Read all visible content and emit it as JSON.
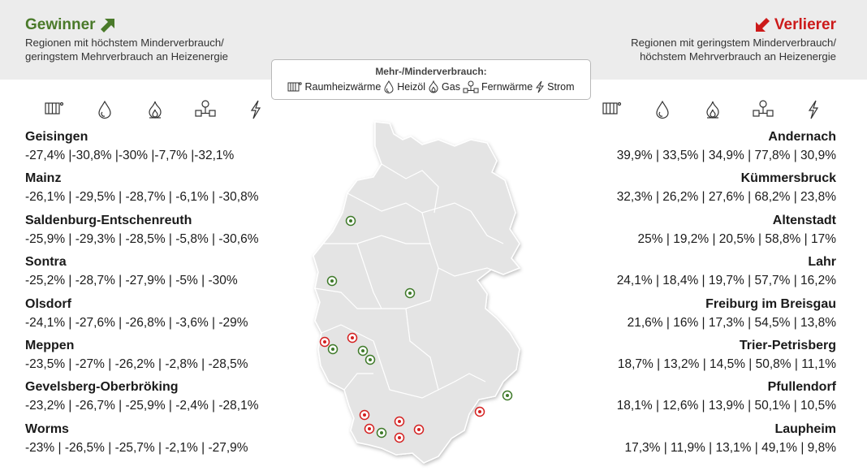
{
  "winners": {
    "title": "Gewinner",
    "subtitle_line1": "Regionen mit höchstem Minderverbrauch/",
    "subtitle_line2": "geringstem Mehrverbrauch an Heizenergie",
    "arrow_color": "#4a7a2a",
    "arrow_icon": "arrow-up-right-icon",
    "entries": [
      {
        "name": "Geisingen",
        "values": "-27,4% |-30,8% |-30% |-7,7% |-32,1%"
      },
      {
        "name": "Mainz",
        "values": "-26,1% | -29,5% | -28,7% | -6,1% | -30,8%"
      },
      {
        "name": "Saldenburg-Entschenreuth",
        "values": "-25,9% | -29,3% | -28,5% | -5,8% | -30,6%"
      },
      {
        "name": "Sontra",
        "values": "-25,2% | -28,7% | -27,9% | -5% | -30%"
      },
      {
        "name": "Olsdorf",
        "values": "-24,1% | -27,6% | -26,8% | -3,6% | -29%"
      },
      {
        "name": "Meppen",
        "values": "-23,5% | -27% | -26,2% | -2,8% | -28,5%"
      },
      {
        "name": "Gevelsberg-Oberbröking",
        "values": "-23,2% | -26,7% | -25,9% | -2,4% | -28,1%"
      },
      {
        "name": "Worms",
        "values": "-23% | -26,5% | -25,7% | -2,1% | -27,9%"
      }
    ]
  },
  "losers": {
    "title": "Verlierer",
    "subtitle_line1": "Regionen mit geringstem Minderverbrauch/",
    "subtitle_line2": "höchstem Mehrverbrauch an Heizenergie",
    "arrow_color": "#cc1a1a",
    "arrow_icon": "arrow-down-left-icon",
    "entries": [
      {
        "name": "Andernach",
        "values": "39,9% | 33,5% | 34,9% | 77,8% | 30,9%"
      },
      {
        "name": "Kümmersbruck",
        "values": "32,3% | 26,2% | 27,6% | 68,2% | 23,8%"
      },
      {
        "name": "Altenstadt",
        "values": "25% | 19,2% | 20,5% | 58,8% | 17%"
      },
      {
        "name": "Lahr",
        "values": "24,1% | 18,4% | 19,7% | 57,7% | 16,2%"
      },
      {
        "name": "Freiburg im Breisgau",
        "values": "21,6% | 16% | 17,3% | 54,5% | 13,8%"
      },
      {
        "name": "Trier-Petrisberg",
        "values": "18,7% | 13,2% | 14,5% | 50,8% | 11,1%"
      },
      {
        "name": "Pfullendorf",
        "values": "18,1% | 12,6% | 13,9% | 50,1% | 10,5%"
      },
      {
        "name": "Laupheim",
        "values": "17,3% | 11,9% | 13,1% | 49,1% | 9,8%"
      }
    ]
  },
  "legend": {
    "title": "Mehr-/Minderverbrauch:",
    "items": [
      {
        "icon": "radiator-icon",
        "label": "Raumheizwärme"
      },
      {
        "icon": "oil-drop-icon",
        "label": "Heizöl"
      },
      {
        "icon": "gas-flame-icon",
        "label": "Gas"
      },
      {
        "icon": "district-heating-icon",
        "label": "Fernwärme"
      },
      {
        "icon": "lightning-icon",
        "label": "Strom"
      }
    ]
  },
  "map": {
    "region": "germany-map",
    "winner_marker_color": "#3f7a2a",
    "loser_marker_color": "#d42020"
  }
}
